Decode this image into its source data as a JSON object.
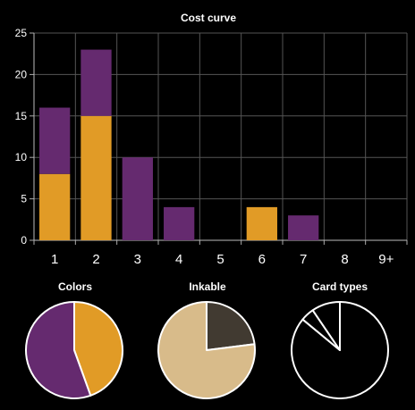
{
  "chart_data": [
    {
      "type": "bar",
      "stacked": true,
      "title": "Cost curve",
      "xlabel": "",
      "ylabel": "",
      "categories": [
        "1",
        "2",
        "3",
        "4",
        "5",
        "6",
        "7",
        "8",
        "9+"
      ],
      "series": [
        {
          "color": "#e19b26",
          "values": [
            8,
            15,
            0,
            0,
            0,
            4,
            0,
            0,
            0
          ]
        },
        {
          "color": "#652a6f",
          "values": [
            8,
            8,
            10,
            4,
            0,
            0,
            3,
            0,
            0
          ]
        }
      ],
      "ylim": [
        0,
        25
      ],
      "yticks": [
        0,
        5,
        10,
        15,
        20,
        25
      ],
      "grid": true,
      "legend": "none"
    },
    {
      "type": "pie",
      "title": "Colors",
      "slices": [
        {
          "value": 0.445,
          "color": "#e19b26"
        },
        {
          "value": 0.555,
          "color": "#652a6f"
        }
      ]
    },
    {
      "type": "pie",
      "title": "Inkable",
      "slices": [
        {
          "value": 0.23,
          "color": "#413a31"
        },
        {
          "value": 0.77,
          "color": "#d8bb8a"
        }
      ]
    },
    {
      "type": "pie",
      "title": "Card types",
      "slices": [
        {
          "value": 0.86,
          "color": "#000000"
        },
        {
          "value": 0.045,
          "color": "#000000"
        },
        {
          "value": 0.095,
          "color": "#000000"
        }
      ]
    }
  ]
}
